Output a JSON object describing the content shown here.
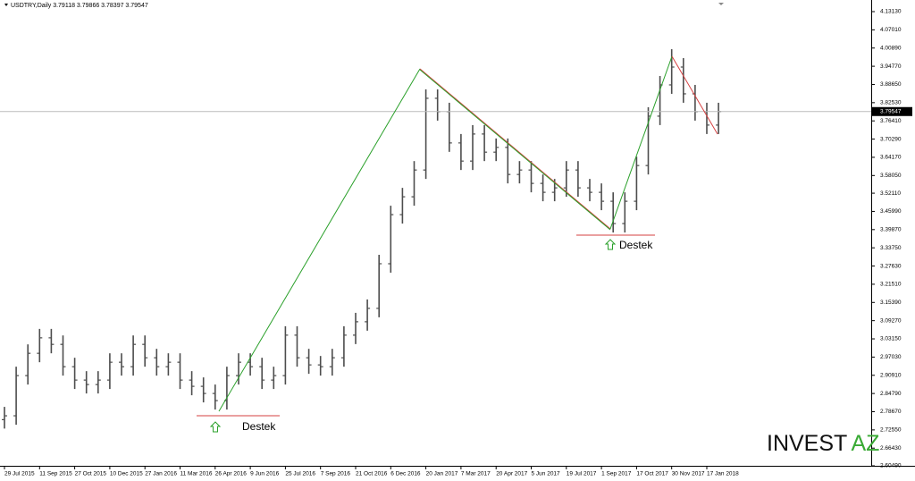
{
  "chart_data": {
    "type": "ohlc",
    "title": "USDTRY,Daily 3.79118 3.79866 3.78397 3.79547",
    "color": "#4d4d4d",
    "categories": [
      "29 Jul 2015",
      null,
      null,
      "11 Sep 2015",
      null,
      null,
      "27 Oct 2015",
      null,
      null,
      "10 Dec 2015",
      null,
      null,
      "27 Jan 2016",
      null,
      null,
      "11 Mar 2016",
      null,
      null,
      "26 Apr 2016",
      null,
      null,
      "9 Jun 2016",
      null,
      null,
      "25 Jul 2016",
      null,
      null,
      "7 Sep 2016",
      null,
      null,
      "21 Oct 2016",
      null,
      null,
      "6 Dec 2016",
      null,
      null,
      "20 Jan 2017",
      null,
      null,
      "7 Mar 2017",
      null,
      null,
      "20 Apr 2017",
      null,
      null,
      "5 Jun 2017",
      null,
      null,
      "19 Jul 2017",
      null,
      null,
      "1 Sep 2017",
      null,
      null,
      "17 Oct 2017",
      null,
      null,
      "30 Nov 2017",
      null,
      null,
      "17 Jan 2018",
      null
    ],
    "open": [
      2.76,
      2.773,
      2.908,
      2.983,
      3.035,
      3.013,
      2.938,
      2.893,
      2.878,
      2.893,
      2.953,
      2.938,
      3.013,
      2.968,
      2.938,
      2.953,
      2.893,
      2.872,
      2.848,
      2.824,
      2.908,
      2.953,
      2.938,
      2.893,
      2.908,
      3.044,
      2.968,
      2.944,
      2.938,
      2.968,
      3.044,
      3.089,
      3.134,
      3.284,
      3.449,
      3.509,
      3.599,
      3.84,
      3.795,
      3.69,
      3.629,
      3.72,
      3.659,
      3.675,
      3.584,
      3.599,
      3.554,
      3.524,
      3.539,
      3.599,
      3.539,
      3.524,
      3.494,
      3.419,
      3.494,
      3.614,
      3.78,
      3.885,
      3.945,
      3.855,
      3.795,
      3.75
    ],
    "high": [
      2.803,
      2.938,
      3.013,
      3.065,
      3.065,
      3.043,
      2.968,
      2.923,
      2.923,
      2.983,
      2.983,
      3.043,
      3.043,
      2.998,
      2.983,
      2.983,
      2.923,
      2.902,
      2.878,
      2.938,
      2.983,
      2.983,
      2.968,
      2.938,
      3.074,
      3.074,
      2.998,
      2.974,
      2.998,
      3.074,
      3.119,
      3.164,
      3.314,
      3.479,
      3.539,
      3.629,
      3.87,
      3.87,
      3.825,
      3.72,
      3.75,
      3.75,
      3.705,
      3.705,
      3.629,
      3.629,
      3.584,
      3.569,
      3.629,
      3.629,
      3.569,
      3.554,
      3.524,
      3.524,
      3.644,
      3.81,
      3.915,
      4.005,
      3.975,
      3.885,
      3.825,
      3.825
    ],
    "low": [
      2.73,
      2.743,
      2.878,
      2.953,
      2.983,
      2.908,
      2.863,
      2.848,
      2.848,
      2.863,
      2.908,
      2.908,
      2.938,
      2.908,
      2.908,
      2.863,
      2.842,
      2.818,
      2.794,
      2.794,
      2.878,
      2.908,
      2.863,
      2.863,
      2.878,
      2.938,
      2.914,
      2.908,
      2.908,
      2.938,
      3.014,
      3.059,
      3.104,
      3.254,
      3.419,
      3.479,
      3.569,
      3.765,
      3.66,
      3.599,
      3.599,
      3.629,
      3.629,
      3.554,
      3.554,
      3.524,
      3.494,
      3.494,
      3.509,
      3.509,
      3.494,
      3.464,
      3.389,
      3.389,
      3.464,
      3.584,
      3.75,
      3.855,
      3.825,
      3.765,
      3.72,
      3.72
    ],
    "close": [
      2.773,
      2.908,
      2.983,
      3.035,
      3.013,
      2.938,
      2.893,
      2.878,
      2.893,
      2.953,
      2.938,
      3.013,
      2.968,
      2.938,
      2.953,
      2.893,
      2.872,
      2.848,
      2.824,
      2.908,
      2.953,
      2.938,
      2.893,
      2.908,
      3.044,
      2.968,
      2.944,
      2.938,
      2.968,
      3.044,
      3.089,
      3.134,
      3.284,
      3.449,
      3.509,
      3.599,
      3.84,
      3.795,
      3.69,
      3.629,
      3.72,
      3.659,
      3.675,
      3.584,
      3.599,
      3.554,
      3.524,
      3.539,
      3.599,
      3.539,
      3.524,
      3.494,
      3.419,
      3.494,
      3.614,
      3.78,
      3.885,
      3.945,
      3.855,
      3.795,
      3.75,
      3.79547
    ],
    "last_price": 3.79547,
    "ylim": [
      2.6049,
      4.1313
    ],
    "yticks": [
      {
        "value": 2.6049,
        "label": "2.60490"
      },
      {
        "value": 2.6643,
        "label": "2.66430"
      },
      {
        "value": 2.7255,
        "label": "2.72550"
      },
      {
        "value": 2.7867,
        "label": "2.78670"
      },
      {
        "value": 2.8479,
        "label": "2.84790"
      },
      {
        "value": 2.9091,
        "label": "2.90910"
      },
      {
        "value": 2.9703,
        "label": "2.97030"
      },
      {
        "value": 3.0315,
        "label": "3.03150"
      },
      {
        "value": 3.0927,
        "label": "3.09270"
      },
      {
        "value": 3.1539,
        "label": "3.15390"
      },
      {
        "value": 3.2151,
        "label": "3.21510"
      },
      {
        "value": 3.2763,
        "label": "3.27630"
      },
      {
        "value": 3.3375,
        "label": "3.33750"
      },
      {
        "value": 3.3987,
        "label": "3.39870"
      },
      {
        "value": 3.4599,
        "label": "3.45990"
      },
      {
        "value": 3.5211,
        "label": "3.52110"
      },
      {
        "value": 3.5805,
        "label": "3.58050"
      },
      {
        "value": 3.6417,
        "label": "3.64170"
      },
      {
        "value": 3.7029,
        "label": "3.70290"
      },
      {
        "value": 3.7641,
        "label": "3.76410"
      },
      {
        "value": 3.8253,
        "label": "3.82530"
      },
      {
        "value": 3.8865,
        "label": "3.88650"
      },
      {
        "value": 3.9477,
        "label": "3.94770"
      },
      {
        "value": 4.0089,
        "label": "4.00890"
      },
      {
        "value": 4.0701,
        "label": "4.07010"
      },
      {
        "value": 4.1313,
        "label": "4.13130"
      }
    ],
    "annotations": [
      "Destek",
      "Destek"
    ],
    "logo": [
      "INVEST",
      "AZ"
    ]
  }
}
